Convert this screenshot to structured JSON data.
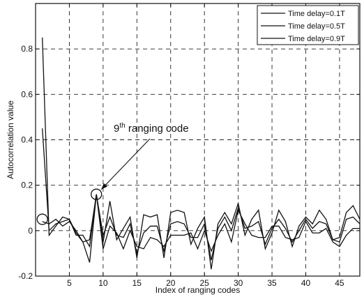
{
  "chart_data": {
    "type": "line",
    "xlabel": "Index of ranging codes",
    "ylabel": "Autocorrelation value",
    "xlim": [
      0,
      48
    ],
    "ylim": [
      -0.2,
      1.0
    ],
    "x_ticks": [
      5,
      10,
      15,
      20,
      25,
      30,
      35,
      40,
      45
    ],
    "x_tick_labels": [
      "5",
      "10",
      "15",
      "20",
      "25",
      "30",
      "35",
      "40",
      "45"
    ],
    "y_ticks": [
      -0.2,
      0,
      0.2,
      0.4,
      0.6,
      0.8
    ],
    "y_tick_labels": [
      "-0.2",
      "0",
      "0.2",
      "0.4",
      "0.6",
      "0.8"
    ],
    "grid": true,
    "legend_position": "top-right",
    "x": [
      1,
      2,
      3,
      4,
      5,
      6,
      7,
      8,
      9,
      10,
      11,
      12,
      13,
      14,
      15,
      16,
      17,
      18,
      19,
      20,
      21,
      22,
      23,
      24,
      25,
      26,
      27,
      28,
      29,
      30,
      31,
      32,
      33,
      34,
      35,
      36,
      37,
      38,
      39,
      40,
      41,
      42,
      43,
      44,
      45,
      46,
      47,
      48
    ],
    "series": [
      {
        "name": "Time delay=0.1T",
        "values": [
          0.85,
          -0.02,
          0.02,
          0.06,
          0.05,
          -0.01,
          -0.05,
          -0.14,
          0.16,
          -0.05,
          0.13,
          -0.04,
          0.01,
          0.06,
          -0.12,
          0.07,
          0.06,
          0.07,
          -0.12,
          0.08,
          0.09,
          0.08,
          -0.06,
          0.01,
          0.06,
          -0.17,
          0.03,
          0.08,
          0.03,
          0.12,
          -0.02,
          0.05,
          0.09,
          -0.08,
          -0.01,
          0.09,
          0.04,
          -0.07,
          0.02,
          0.06,
          0.03,
          0.09,
          0.05,
          -0.04,
          -0.03,
          0.08,
          0.11,
          0.05
        ]
      },
      {
        "name": "Time delay=0.5T",
        "values": [
          0.45,
          0.0,
          0.03,
          0.04,
          0.05,
          -0.02,
          -0.02,
          -0.07,
          0.16,
          -0.02,
          0.06,
          -0.02,
          -0.03,
          0.03,
          -0.1,
          -0.01,
          0.02,
          0.02,
          -0.09,
          0.03,
          0.04,
          0.03,
          -0.03,
          -0.03,
          0.03,
          -0.13,
          0.01,
          0.06,
          0.0,
          0.1,
          0.01,
          0.02,
          0.04,
          -0.06,
          0.01,
          0.05,
          0.01,
          -0.05,
          0.0,
          0.05,
          0.01,
          0.04,
          0.03,
          -0.04,
          -0.05,
          0.05,
          0.06,
          0.03
        ]
      },
      {
        "name": "Time delay=0.9T",
        "values": [
          0.04,
          0.03,
          0.05,
          0.02,
          0.04,
          0.0,
          -0.05,
          -0.04,
          0.16,
          -0.08,
          0.02,
          -0.01,
          -0.08,
          0.0,
          -0.07,
          -0.08,
          -0.03,
          -0.04,
          -0.07,
          -0.02,
          -0.02,
          -0.02,
          -0.01,
          -0.08,
          0.0,
          -0.09,
          -0.02,
          0.03,
          -0.05,
          0.09,
          0.03,
          -0.02,
          -0.03,
          -0.03,
          0.02,
          0.02,
          -0.03,
          -0.04,
          -0.03,
          0.04,
          -0.01,
          -0.01,
          0.01,
          -0.05,
          -0.07,
          -0.02,
          0.01,
          0.01
        ]
      }
    ],
    "annotation": {
      "text_main": "9",
      "text_sup": "th",
      "text_rest": " ranging code",
      "markers": [
        {
          "x": 1,
          "y": 0.05
        },
        {
          "x": 9,
          "y": 0.16
        }
      ]
    }
  }
}
